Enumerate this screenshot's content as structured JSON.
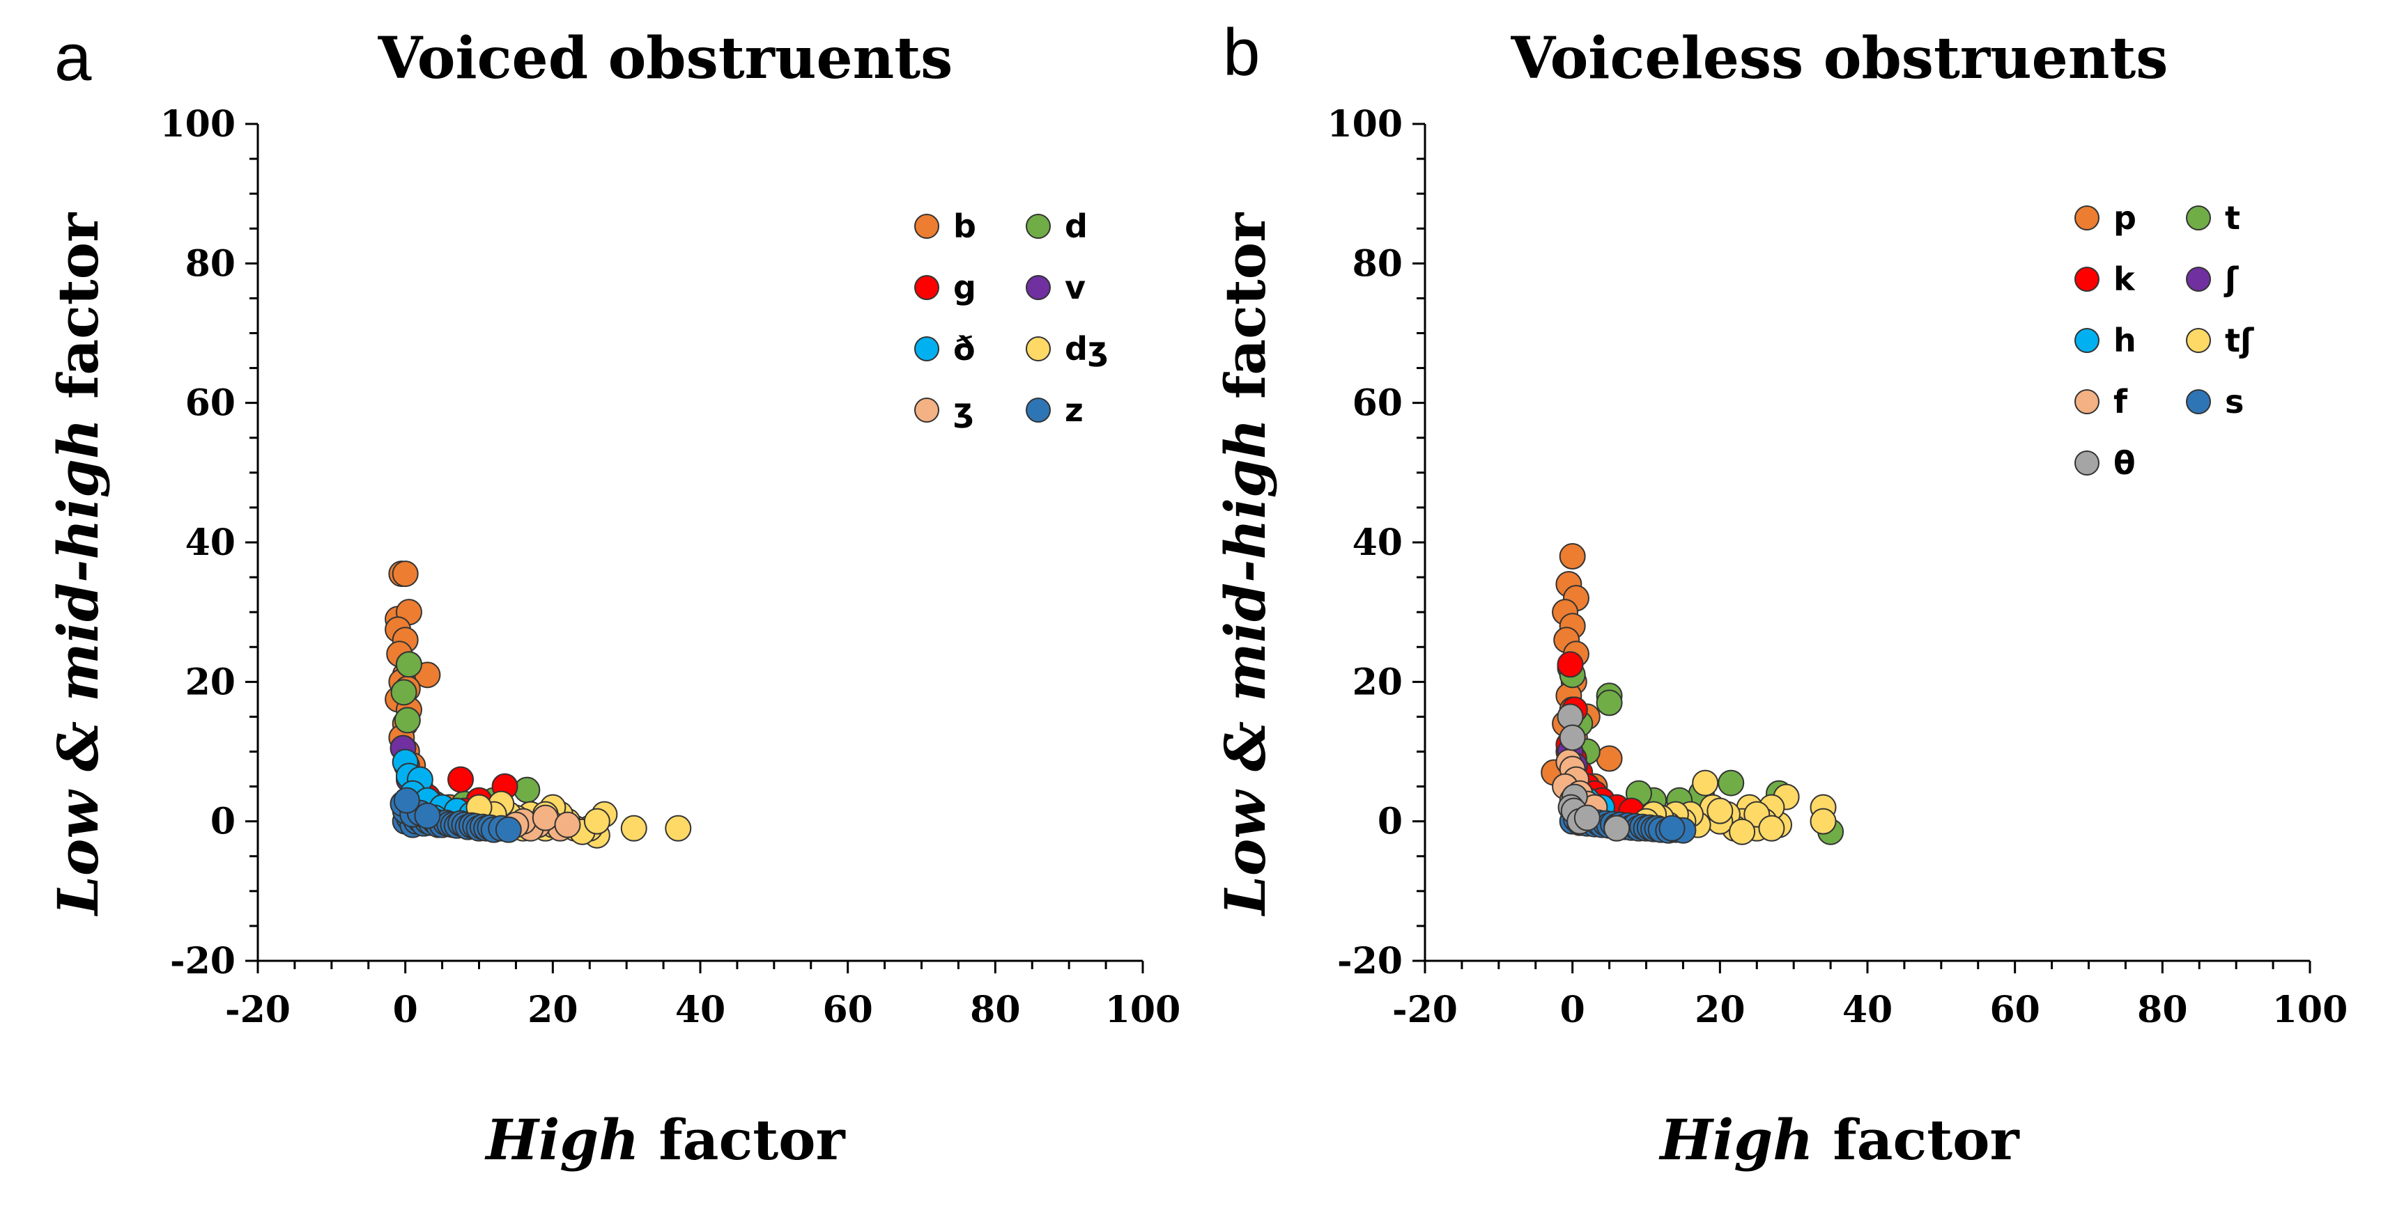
{
  "chart_data": [
    {
      "type": "scatter",
      "panel_label": "a",
      "title": "Voiced obstruents",
      "xlabel": {
        "italic": "High",
        "rest": " factor"
      },
      "ylabel": {
        "italic": "Low & mid-high",
        "rest": " factor"
      },
      "xlim": [
        -20,
        100
      ],
      "ylim": [
        -20,
        100
      ],
      "xticks": [
        -20,
        0,
        20,
        40,
        60,
        80,
        100
      ],
      "yticks": [
        -20,
        0,
        20,
        40,
        60,
        80,
        100
      ],
      "grid": false,
      "legend_position": "top-right",
      "series": [
        {
          "name": "b",
          "color": "#ED7D31",
          "points": [
            [
              -0.5,
              35.5
            ],
            [
              0,
              35.5
            ],
            [
              -1,
              29
            ],
            [
              0.5,
              30
            ],
            [
              -1,
              27.5
            ],
            [
              0,
              26
            ],
            [
              -0.8,
              24
            ],
            [
              0.5,
              22.5
            ],
            [
              0,
              21
            ],
            [
              3,
              21
            ],
            [
              -0.5,
              20
            ],
            [
              0.3,
              19
            ],
            [
              -1,
              17.5
            ],
            [
              0.5,
              16
            ],
            [
              0,
              14
            ],
            [
              -0.5,
              12
            ],
            [
              0.2,
              10
            ],
            [
              1,
              8
            ],
            [
              2,
              5
            ],
            [
              3,
              3
            ],
            [
              4,
              2.5
            ],
            [
              6,
              2
            ],
            [
              1,
              3
            ]
          ]
        },
        {
          "name": "d",
          "color": "#70AD47",
          "points": [
            [
              0.5,
              22.5
            ],
            [
              -0.2,
              18.5
            ],
            [
              0.3,
              14.5
            ],
            [
              16.5,
              4.5
            ],
            [
              12,
              3
            ],
            [
              8,
              2.5
            ],
            [
              17,
              1
            ]
          ]
        },
        {
          "name": "g",
          "color": "#FF0000",
          "points": [
            [
              7.5,
              6
            ],
            [
              13.5,
              5
            ],
            [
              10,
              3
            ],
            [
              5,
              2
            ],
            [
              3,
              3.5
            ],
            [
              8,
              1.5
            ]
          ]
        },
        {
          "name": "v",
          "color": "#7030A0",
          "points": [
            [
              -0.3,
              10.5
            ],
            [
              0.2,
              8
            ],
            [
              0.5,
              6
            ]
          ]
        },
        {
          "name": "ð",
          "color": "#00B0F0",
          "points": [
            [
              0,
              8.5
            ],
            [
              0.5,
              6.5
            ],
            [
              2,
              6
            ],
            [
              1,
              4
            ],
            [
              3,
              3
            ],
            [
              5,
              2
            ],
            [
              7,
              1.5
            ],
            [
              9,
              1
            ],
            [
              4,
              0.5
            ]
          ]
        },
        {
          "name": "dʒ",
          "color": "#FFD966",
          "points": [
            [
              37,
              -1
            ],
            [
              31,
              -1
            ],
            [
              27,
              1
            ],
            [
              26,
              -2
            ],
            [
              25,
              -1
            ],
            [
              23,
              -1
            ],
            [
              22,
              0
            ],
            [
              21,
              1
            ],
            [
              20,
              2
            ],
            [
              19,
              -1
            ],
            [
              18,
              0
            ],
            [
              17,
              1
            ],
            [
              16,
              -1
            ],
            [
              15,
              0.5
            ],
            [
              14,
              1
            ],
            [
              13,
              2.5
            ],
            [
              12,
              1
            ],
            [
              10,
              2
            ],
            [
              24,
              -1.5
            ],
            [
              26,
              0
            ],
            [
              19,
              1
            ],
            [
              20,
              -0.5
            ]
          ]
        },
        {
          "name": "ʒ",
          "color": "#F4B183",
          "points": [
            [
              21,
              -1
            ],
            [
              18,
              -0.5
            ],
            [
              17,
              -1
            ],
            [
              16,
              0
            ],
            [
              19,
              0.5
            ],
            [
              15,
              -0.5
            ],
            [
              22,
              -0.5
            ]
          ]
        },
        {
          "name": "z",
          "color": "#2E75B6",
          "points": [
            [
              0,
              0
            ],
            [
              0.5,
              0.5
            ],
            [
              1,
              -0.5
            ],
            [
              1.5,
              0
            ],
            [
              2,
              0.2
            ],
            [
              2.5,
              -0.3
            ],
            [
              3,
              0
            ],
            [
              3.5,
              -0.2
            ],
            [
              4,
              0
            ],
            [
              4.5,
              -0.5
            ],
            [
              5,
              -0.5
            ],
            [
              5.5,
              -0.2
            ],
            [
              6,
              -0.4
            ],
            [
              6.5,
              -0.5
            ],
            [
              7,
              -0.6
            ],
            [
              7.5,
              -0.3
            ],
            [
              8,
              -0.5
            ],
            [
              8.5,
              -0.8
            ],
            [
              9,
              -0.6
            ],
            [
              9.5,
              -0.7
            ],
            [
              10,
              -1
            ],
            [
              10.5,
              -0.8
            ],
            [
              11,
              -1
            ],
            [
              11.5,
              -0.9
            ],
            [
              12,
              -1.2
            ],
            [
              0,
              1.5
            ],
            [
              -0.3,
              2.5
            ],
            [
              1,
              1
            ],
            [
              2,
              1.2
            ],
            [
              0.2,
              3
            ],
            [
              3,
              0.8
            ],
            [
              13,
              -1
            ],
            [
              14,
              -1.2
            ]
          ]
        }
      ]
    },
    {
      "type": "scatter",
      "panel_label": "b",
      "title": "Voiceless obstruents",
      "xlabel": {
        "italic": "High",
        "rest": " factor"
      },
      "ylabel": {
        "italic": "Low & mid-high",
        "rest": " factor"
      },
      "xlim": [
        -20,
        100
      ],
      "ylim": [
        -20,
        100
      ],
      "xticks": [
        -20,
        0,
        20,
        40,
        60,
        80,
        100
      ],
      "yticks": [
        -20,
        0,
        20,
        40,
        60,
        80,
        100
      ],
      "grid": false,
      "legend_position": "top-right",
      "series": [
        {
          "name": "p",
          "color": "#ED7D31",
          "points": [
            [
              0,
              38
            ],
            [
              -0.5,
              34
            ],
            [
              0.5,
              32
            ],
            [
              -1,
              30
            ],
            [
              0,
              28
            ],
            [
              -0.8,
              26
            ],
            [
              0.5,
              24
            ],
            [
              -0.3,
              22
            ],
            [
              0.2,
              20
            ],
            [
              -0.5,
              18
            ],
            [
              0,
              16
            ],
            [
              -1,
              14
            ],
            [
              0.3,
              12
            ],
            [
              -0.5,
              10
            ],
            [
              0.2,
              8
            ],
            [
              -2.5,
              7
            ],
            [
              1,
              6
            ],
            [
              2,
              15
            ],
            [
              5,
              9
            ],
            [
              3,
              5
            ],
            [
              1,
              4
            ],
            [
              4,
              2
            ]
          ]
        },
        {
          "name": "t",
          "color": "#70AD47",
          "points": [
            [
              0,
              21
            ],
            [
              5,
              18
            ],
            [
              5,
              17
            ],
            [
              35,
              -1.5
            ],
            [
              28,
              4
            ],
            [
              21.5,
              5.5
            ],
            [
              17.5,
              4
            ],
            [
              14.5,
              3
            ],
            [
              11,
              3
            ],
            [
              9,
              4
            ],
            [
              2,
              10
            ],
            [
              1,
              14
            ],
            [
              27,
              -1
            ],
            [
              22,
              -1
            ]
          ]
        },
        {
          "name": "k",
          "color": "#FF0000",
          "points": [
            [
              -0.3,
              22.5
            ],
            [
              0.3,
              16
            ],
            [
              -0.5,
              11
            ],
            [
              0.2,
              9
            ],
            [
              1,
              7
            ],
            [
              2,
              5
            ],
            [
              3,
              4
            ],
            [
              4,
              3
            ],
            [
              6,
              2
            ],
            [
              8,
              1.5
            ]
          ]
        },
        {
          "name": "ʃ",
          "color": "#7030A0",
          "points": [
            [
              -0.3,
              10
            ],
            [
              0.3,
              8
            ]
          ]
        },
        {
          "name": "h",
          "color": "#00B0F0",
          "points": [
            [
              0,
              6
            ],
            [
              0.5,
              4
            ],
            [
              2,
              3
            ],
            [
              4,
              2
            ]
          ]
        },
        {
          "name": "tʃ",
          "color": "#FFD966",
          "points": [
            [
              34,
              2
            ],
            [
              34,
              0
            ],
            [
              28,
              -0.5
            ],
            [
              29,
              3.5
            ],
            [
              27,
              2
            ],
            [
              26,
              0
            ],
            [
              25,
              -1
            ],
            [
              24,
              2
            ],
            [
              23,
              0
            ],
            [
              22,
              -1
            ],
            [
              21,
              1
            ],
            [
              20,
              0
            ],
            [
              19,
              2
            ],
            [
              18,
              5.5
            ],
            [
              17,
              -0.5
            ],
            [
              16,
              1
            ],
            [
              15,
              0
            ],
            [
              14,
              1
            ],
            [
              13,
              -0.5
            ],
            [
              12,
              0.5
            ],
            [
              11,
              1
            ],
            [
              10,
              0
            ],
            [
              25,
              1
            ],
            [
              23,
              -1.5
            ],
            [
              20,
              1.5
            ],
            [
              27,
              -1
            ]
          ]
        },
        {
          "name": "f",
          "color": "#F4B183",
          "points": [
            [
              -0.5,
              8.5
            ],
            [
              0,
              7.5
            ],
            [
              0.5,
              6
            ],
            [
              -1,
              5
            ],
            [
              1,
              4
            ],
            [
              0,
              3
            ],
            [
              2,
              2.5
            ],
            [
              3,
              2
            ]
          ]
        },
        {
          "name": "s",
          "color": "#2E75B6",
          "points": [
            [
              0,
              0
            ],
            [
              0.5,
              0.3
            ],
            [
              1,
              -0.2
            ],
            [
              1.5,
              0
            ],
            [
              2,
              -0.3
            ],
            [
              2.5,
              0
            ],
            [
              3,
              -0.4
            ],
            [
              3.5,
              -0.2
            ],
            [
              4,
              -0.5
            ],
            [
              4.5,
              -0.3
            ],
            [
              5,
              -0.6
            ],
            [
              5.5,
              -0.4
            ],
            [
              6,
              -0.7
            ],
            [
              6.5,
              -0.5
            ],
            [
              7,
              -0.8
            ],
            [
              7.5,
              -0.6
            ],
            [
              8,
              -0.9
            ],
            [
              8.5,
              -0.7
            ],
            [
              9,
              -1
            ],
            [
              9.5,
              -0.8
            ],
            [
              10,
              -1
            ],
            [
              10.5,
              -0.9
            ],
            [
              11,
              -1.1
            ],
            [
              11.5,
              -1
            ],
            [
              12,
              -1.2
            ],
            [
              13,
              -1.3
            ],
            [
              14,
              -1.2
            ],
            [
              15,
              -1.3
            ],
            [
              13.5,
              -1
            ]
          ]
        },
        {
          "name": "θ",
          "color": "#A5A5A5",
          "points": [
            [
              -0.3,
              15
            ],
            [
              0,
              12
            ],
            [
              0.3,
              3.5
            ],
            [
              -0.2,
              2
            ],
            [
              0.2,
              1.5
            ],
            [
              1,
              0
            ],
            [
              2,
              0.5
            ],
            [
              6,
              -1
            ]
          ]
        }
      ]
    }
  ]
}
